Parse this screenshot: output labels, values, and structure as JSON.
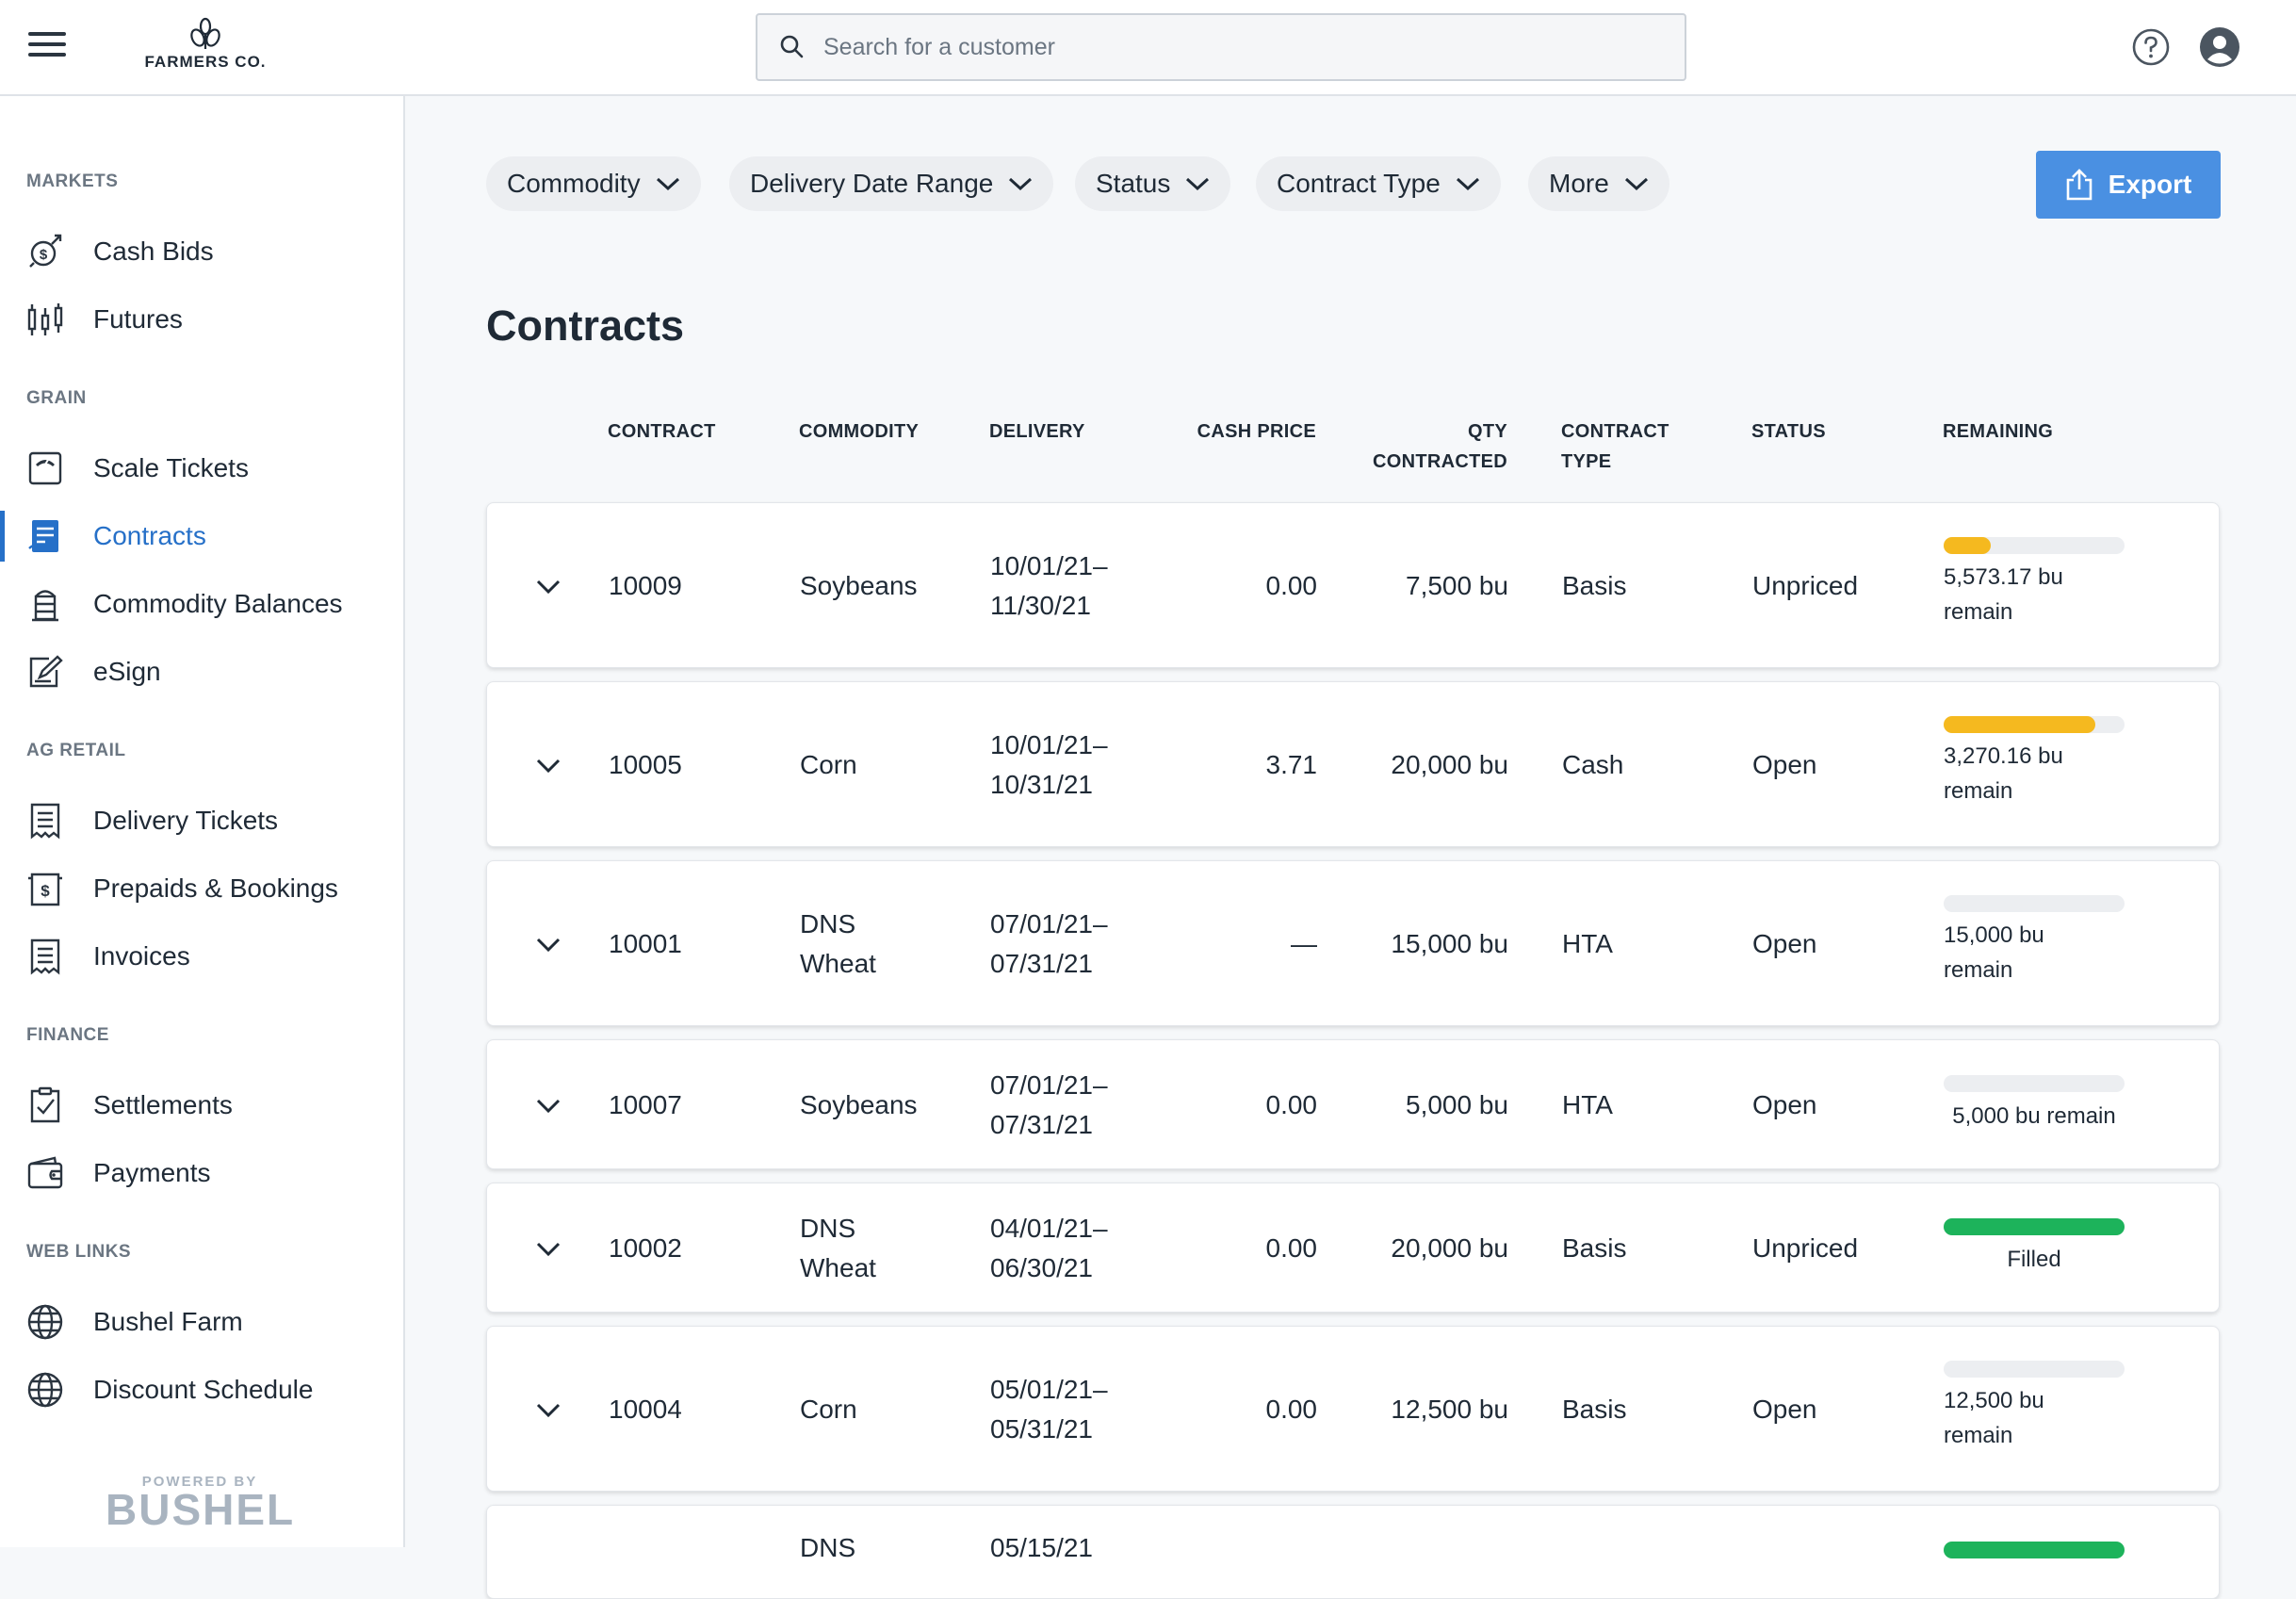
{
  "header": {
    "brand": "FARMERS CO.",
    "search_placeholder": "Search for a customer"
  },
  "sidebar": {
    "sections": [
      {
        "title": "MARKETS",
        "items": [
          {
            "label": "Cash Bids",
            "icon": "cash-bids-icon"
          },
          {
            "label": "Futures",
            "icon": "futures-icon"
          }
        ]
      },
      {
        "title": "GRAIN",
        "items": [
          {
            "label": "Scale Tickets",
            "icon": "scale-icon"
          },
          {
            "label": "Contracts",
            "icon": "contracts-icon",
            "active": true
          },
          {
            "label": "Commodity Balances",
            "icon": "silo-icon"
          },
          {
            "label": "eSign",
            "icon": "esign-icon"
          }
        ]
      },
      {
        "title": "AG RETAIL",
        "items": [
          {
            "label": "Delivery Tickets",
            "icon": "receipt-icon"
          },
          {
            "label": "Prepaids & Bookings",
            "icon": "prepaid-icon"
          },
          {
            "label": "Invoices",
            "icon": "invoice-icon"
          }
        ]
      },
      {
        "title": "FINANCE",
        "items": [
          {
            "label": "Settlements",
            "icon": "checklist-icon"
          },
          {
            "label": "Payments",
            "icon": "wallet-icon"
          }
        ]
      },
      {
        "title": "WEB LINKS",
        "items": [
          {
            "label": "Bushel Farm",
            "icon": "globe-icon"
          },
          {
            "label": "Discount Schedule",
            "icon": "globe-icon"
          }
        ]
      }
    ],
    "powered_by": "POWERED BY",
    "powered_brand": "BUSHEL"
  },
  "filters": [
    "Commodity",
    "Delivery Date Range",
    "Status",
    "Contract Type",
    "More"
  ],
  "export_label": "Export",
  "page_title": "Contracts",
  "columns": {
    "contract": "CONTRACT",
    "commodity": "COMMODITY",
    "delivery": "DELIVERY",
    "cash_price": "CASH PRICE",
    "qty_1": "QTY",
    "qty_2": "CONTRACTED",
    "type_1": "CONTRACT",
    "type_2": "TYPE",
    "status": "STATUS",
    "remaining": "REMAINING"
  },
  "colors": {
    "accent": "#4a90e2",
    "active_nav": "#2670c8",
    "progress_partial": "#f5b91f",
    "progress_filled": "#1db35b"
  },
  "contracts": [
    {
      "contract": "10009",
      "commodity_1": "Soybeans",
      "commodity_2": "",
      "delivery_1": "10/01/21–",
      "delivery_2": "11/30/21",
      "cash_price": "0.00",
      "qty": "7,500 bu",
      "type": "Basis",
      "status": "Unpriced",
      "remain_1": "5,573.17 bu",
      "remain_2": "remain",
      "progress": 0.26
    },
    {
      "contract": "10005",
      "commodity_1": "Corn",
      "commodity_2": "",
      "delivery_1": "10/01/21–",
      "delivery_2": "10/31/21",
      "cash_price": "3.71",
      "qty": "20,000 bu",
      "type": "Cash",
      "status": "Open",
      "remain_1": "3,270.16 bu",
      "remain_2": "remain",
      "progress": 0.84
    },
    {
      "contract": "10001",
      "commodity_1": "DNS",
      "commodity_2": "Wheat",
      "delivery_1": "07/01/21–",
      "delivery_2": "07/31/21",
      "cash_price": "—",
      "qty": "15,000 bu",
      "type": "HTA",
      "status": "Open",
      "remain_1": "15,000 bu",
      "remain_2": "remain",
      "progress": 0
    },
    {
      "contract": "10007",
      "commodity_1": "Soybeans",
      "commodity_2": "",
      "delivery_1": "07/01/21–",
      "delivery_2": "07/31/21",
      "cash_price": "0.00",
      "qty": "5,000 bu",
      "type": "HTA",
      "status": "Open",
      "remain_1": "5,000 bu remain",
      "remain_2": "",
      "progress": 0
    },
    {
      "contract": "10002",
      "commodity_1": "DNS",
      "commodity_2": "Wheat",
      "delivery_1": "04/01/21–",
      "delivery_2": "06/30/21",
      "cash_price": "0.00",
      "qty": "20,000 bu",
      "type": "Basis",
      "status": "Unpriced",
      "remain_1": "Filled",
      "remain_2": "",
      "progress": 1
    },
    {
      "contract": "10004",
      "commodity_1": "Corn",
      "commodity_2": "",
      "delivery_1": "05/01/21–",
      "delivery_2": "05/31/21",
      "cash_price": "0.00",
      "qty": "12,500 bu",
      "type": "Basis",
      "status": "Open",
      "remain_1": "12,500 bu",
      "remain_2": "remain",
      "progress": 0
    },
    {
      "contract": "",
      "commodity_1": "DNS",
      "commodity_2": "",
      "delivery_1": "05/15/21",
      "delivery_2": "",
      "cash_price": "",
      "qty": "",
      "type": "",
      "status": "",
      "remain_1": "",
      "remain_2": "",
      "progress": 1
    }
  ]
}
